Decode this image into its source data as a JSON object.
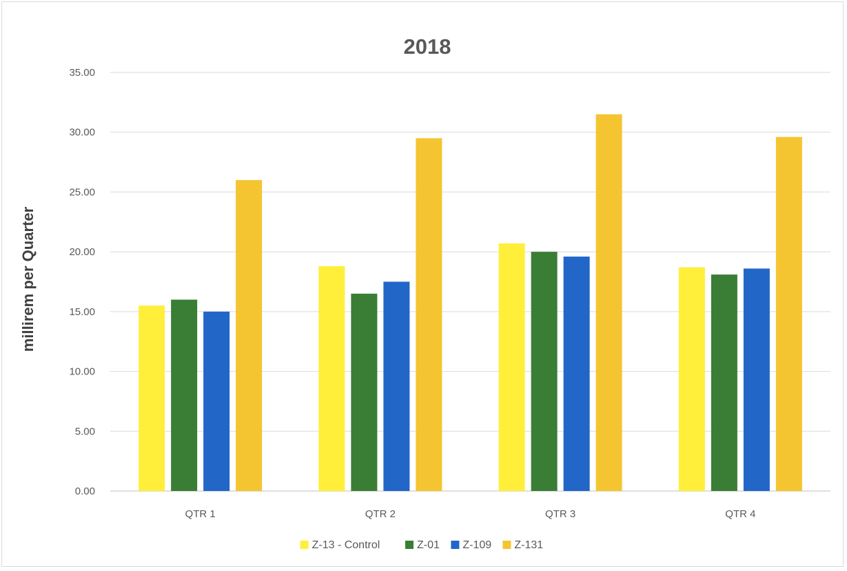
{
  "chart_data": {
    "type": "bar",
    "title": "2018",
    "xlabel": "",
    "ylabel": "millirem per Quarter",
    "ylim": [
      0,
      35
    ],
    "yticks": [
      "0.00",
      "5.00",
      "10.00",
      "15.00",
      "20.00",
      "25.00",
      "30.00",
      "35.00"
    ],
    "grid": true,
    "legend_position": "bottom",
    "categories": [
      "QTR 1",
      "QTR 2",
      "QTR 3",
      "QTR 4"
    ],
    "series": [
      {
        "name": "Z-13 - Control",
        "color": "#ffef3a",
        "values": [
          15.5,
          18.8,
          20.7,
          18.7
        ]
      },
      {
        "name": "Z-01",
        "color": "#3a7d35",
        "values": [
          16.0,
          16.5,
          20.0,
          18.1
        ]
      },
      {
        "name": "Z-109",
        "color": "#2266c8",
        "values": [
          15.0,
          17.5,
          19.6,
          18.6
        ]
      },
      {
        "name": "Z-131",
        "color": "#f4c531",
        "values": [
          26.0,
          29.5,
          31.5,
          29.6
        ]
      }
    ]
  }
}
